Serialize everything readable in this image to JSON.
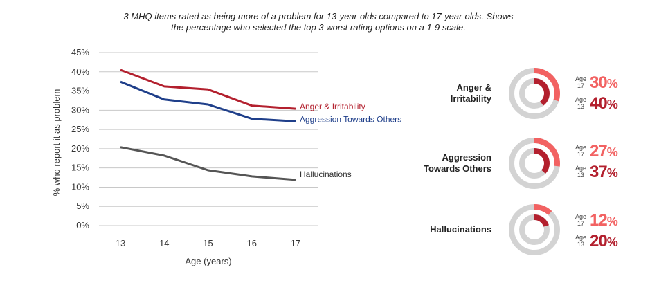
{
  "title": "3 MHQ items rated as being more of a problem for 13-year-olds compared to 17-year-olds. Shows the percentage who selected the top 3 worst rating options on a 1-9 scale.",
  "chart_data": [
    {
      "type": "line",
      "xlabel": "Age (years)",
      "ylabel": "% who report it as problem",
      "x": [
        13,
        14,
        15,
        16,
        17
      ],
      "ylim": [
        0,
        45
      ],
      "yticks": [
        "0%",
        "5%",
        "10%",
        "15%",
        "20%",
        "25%",
        "30%",
        "35%",
        "40%",
        "45%"
      ],
      "grid": true,
      "series": [
        {
          "name": "Anger & Irritability",
          "color": "#b3202e",
          "values": [
            40.5,
            36.2,
            35.4,
            31.2,
            30.4
          ]
        },
        {
          "name": "Aggression Towards Others",
          "color": "#1f3f8a",
          "values": [
            37.4,
            32.8,
            31.5,
            27.8,
            27.1
          ]
        },
        {
          "name": "Hallucinations",
          "color": "#555555",
          "values": [
            20.4,
            18.2,
            14.4,
            12.8,
            11.9
          ]
        }
      ]
    },
    {
      "type": "pie",
      "colors": {
        "age17": "#f26262",
        "age13": "#b3202e",
        "track": "#d3d3d3"
      },
      "items": [
        {
          "label": "Anger & Irritability",
          "label_line1": "Anger &",
          "label_line2": "Irritability",
          "age17": 30,
          "age13": 40
        },
        {
          "label": "Aggression Towards Others",
          "label_line1": "Aggression",
          "label_line2": "Towards Others",
          "age17": 27,
          "age13": 37
        },
        {
          "label": "Hallucinations",
          "label_line1": "Hallucinations",
          "label_line2": "",
          "age17": 12,
          "age13": 20
        }
      ]
    }
  ],
  "age_caption": {
    "age_word": "Age",
    "age17": "17",
    "age13": "13"
  },
  "values_text": {
    "anger": {
      "age17": "30",
      "age13": "40"
    },
    "aggression": {
      "age17": "27",
      "age13": "37"
    },
    "hallucinations": {
      "age17": "12",
      "age13": "20"
    },
    "pct_sign": "%"
  }
}
